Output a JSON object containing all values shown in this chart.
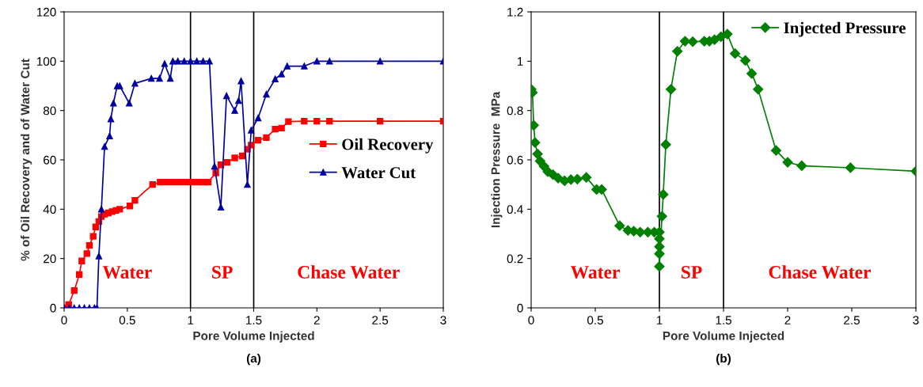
{
  "chart_data": [
    {
      "type": "line",
      "xlabel": "Pore Volume Injected",
      "ylabel": "% of Oil Recovery and of Water Cut",
      "xlim": [
        0,
        3
      ],
      "xticks": [
        0,
        0.5,
        1,
        1.5,
        2,
        2.5,
        3
      ],
      "ylim": [
        0,
        120
      ],
      "yticks": [
        0,
        20,
        40,
        60,
        80,
        100,
        120
      ],
      "grid": false,
      "legend": "right",
      "line_style": "solid",
      "series": [
        {
          "name": "Oil Recovery",
          "color": "#ff0000",
          "marker": "square",
          "x": [
            0,
            0.036,
            0.08,
            0.12,
            0.14,
            0.18,
            0.2,
            0.23,
            0.25,
            0.275,
            0.295,
            0.32,
            0.35,
            0.38,
            0.41,
            0.44,
            0.52,
            0.56,
            0.7,
            0.76,
            0.81,
            0.86,
            0.91,
            0.96,
            1.01,
            1.06,
            1.1,
            1.14,
            1.2,
            1.24,
            1.29,
            1.35,
            1.41,
            1.45,
            1.48,
            1.535,
            1.6,
            1.67,
            1.72,
            1.775,
            1.9,
            2.0,
            2.1,
            2.5,
            3
          ],
          "values": [
            0,
            1.3,
            7,
            13.5,
            19,
            22,
            25.3,
            29,
            32.8,
            35,
            37,
            38,
            38.5,
            39,
            39.5,
            40,
            41.3,
            43.6,
            50,
            51,
            51,
            51,
            51,
            51,
            51,
            51,
            51,
            51,
            54.7,
            58,
            59,
            60.8,
            61.6,
            64.3,
            66,
            68,
            69,
            72.5,
            72.9,
            75.5,
            75.7,
            75.7,
            75.7,
            75.7,
            75.7
          ]
        },
        {
          "name": "Water Cut",
          "color": "#0000a0",
          "marker": "triangle",
          "x": [
            0,
            0.04,
            0.08,
            0.12,
            0.16,
            0.2,
            0.24,
            0.26,
            0.275,
            0.295,
            0.32,
            0.36,
            0.37,
            0.39,
            0.42,
            0.44,
            0.515,
            0.56,
            0.69,
            0.755,
            0.795,
            0.84,
            0.86,
            0.9,
            0.95,
            1.0,
            1.05,
            1.1,
            1.15,
            1.19,
            1.24,
            1.285,
            1.35,
            1.38,
            1.4,
            1.45,
            1.48,
            1.535,
            1.6,
            1.67,
            1.72,
            1.765,
            1.9,
            2.0,
            2.1,
            2.5,
            3
          ],
          "values": [
            0,
            0,
            0,
            0,
            0,
            0,
            0,
            0,
            21,
            40,
            65.4,
            69.7,
            76.6,
            83,
            90,
            90,
            83,
            91,
            93,
            93,
            99,
            93,
            100,
            100,
            100,
            100,
            100,
            100,
            100,
            57.4,
            40.8,
            86,
            80,
            84,
            92,
            50,
            72,
            77,
            86.6,
            92.8,
            94.8,
            98,
            98,
            100,
            100,
            100,
            100
          ]
        }
      ],
      "ref_lines": [
        {
          "axis": "x",
          "value": 1,
          "color": "#000000"
        },
        {
          "axis": "x",
          "value": 1.5,
          "color": "#000000"
        }
      ],
      "annotations": [
        "Water",
        "SP",
        "Chase Water",
        "(a)"
      ]
    },
    {
      "type": "line",
      "xlabel": "Pore Volume Injected",
      "ylabel": "Injection Pressure  MPa",
      "xlim": [
        0,
        3
      ],
      "xticks": [
        0,
        0.5,
        1,
        1.5,
        2,
        2.5,
        3
      ],
      "ylim": [
        0,
        1.2
      ],
      "yticks": [
        0,
        0.2,
        0.4,
        0.6,
        0.8,
        1,
        1.2
      ],
      "grid": false,
      "legend": "top right",
      "line_style": "solid",
      "series": [
        {
          "name": "Injected Pressure",
          "color": "#008000",
          "marker": "diamond",
          "x": [
            0,
            0.01,
            0.02,
            0.03,
            0.05,
            0.07,
            0.1,
            0.13,
            0.17,
            0.21,
            0.26,
            0.31,
            0.36,
            0.43,
            0.51,
            0.55,
            0.69,
            0.755,
            0.8,
            0.85,
            0.91,
            0.96,
            1.0,
            1.0,
            1.0,
            1.0,
            1.0,
            1.02,
            1.03,
            1.05,
            1.09,
            1.14,
            1.2,
            1.26,
            1.35,
            1.39,
            1.43,
            1.48,
            1.53,
            1.59,
            1.67,
            1.72,
            1.77,
            1.91,
            2.0,
            2.11,
            2.49,
            3
          ],
          "values": [
            0.886,
            0.873,
            0.74,
            0.67,
            0.624,
            0.595,
            0.574,
            0.552,
            0.54,
            0.526,
            0.515,
            0.52,
            0.522,
            0.529,
            0.48,
            0.48,
            0.333,
            0.314,
            0.311,
            0.307,
            0.307,
            0.307,
            0.307,
            0.28,
            0.248,
            0.219,
            0.168,
            0.371,
            0.46,
            0.662,
            0.886,
            1.04,
            1.081,
            1.079,
            1.081,
            1.081,
            1.087,
            1.099,
            1.11,
            1.031,
            1.003,
            0.95,
            0.886,
            0.638,
            0.59,
            0.576,
            0.568,
            0.554
          ]
        }
      ],
      "ref_lines": [
        {
          "axis": "x",
          "value": 1,
          "color": "#000000"
        },
        {
          "axis": "x",
          "value": 1.5,
          "color": "#000000"
        }
      ],
      "annotations": [
        "Water",
        "SP",
        "Chase Water",
        "(b)"
      ]
    }
  ]
}
